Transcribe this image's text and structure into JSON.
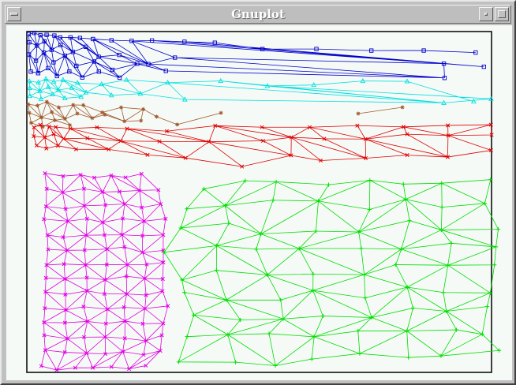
{
  "window": {
    "title": "Gnuplot"
  },
  "meshes": [
    {
      "name": "blue-mesh",
      "color": "#0000cc",
      "point_style": "square-icon"
    },
    {
      "name": "cyan-mesh",
      "color": "#00e0e0",
      "point_style": "triangle-icon"
    },
    {
      "name": "brown-mesh",
      "color": "#a05a2c",
      "point_style": "star-icon"
    },
    {
      "name": "red-mesh",
      "color": "#e00000",
      "point_style": "x-icon"
    },
    {
      "name": "magenta-mesh",
      "color": "#e000e0",
      "point_style": "x-icon"
    },
    {
      "name": "green-mesh",
      "color": "#00dd00",
      "point_style": "plus-icon"
    }
  ],
  "colors": {
    "plot_background": "#f5faf7",
    "frame": "#000000",
    "window_chrome": "#c0c0c0"
  }
}
